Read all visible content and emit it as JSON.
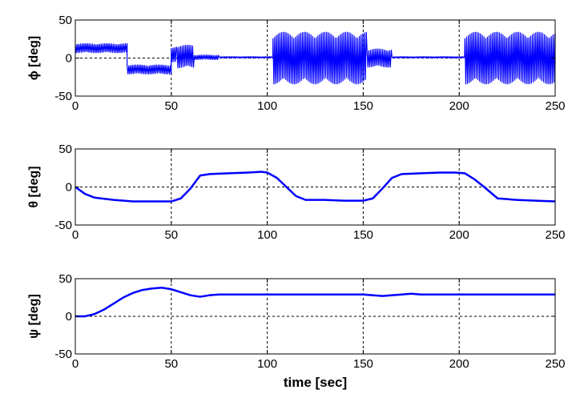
{
  "chart_data": [
    {
      "type": "line",
      "ylabel": "ϕ [deg]",
      "xlabel": "",
      "xlim": [
        0,
        250
      ],
      "ylim": [
        -50,
        50
      ],
      "xticks": [
        0,
        50,
        100,
        150,
        200,
        250
      ],
      "yticks": [
        -50,
        0,
        50
      ],
      "grid": true,
      "color": "#0000ff",
      "series": [
        {
          "segments": [
            {
              "x": [
                0,
                27
              ],
              "center": 13,
              "amp": 6
            },
            {
              "x": [
                27,
                50
              ],
              "center": -15,
              "amp": 6
            },
            {
              "x": [
                50,
                53
              ],
              "center": 5,
              "amp": 10
            },
            {
              "x": [
                53,
                62
              ],
              "center": 2,
              "amp": 15
            },
            {
              "x": [
                62,
                75
              ],
              "center": 1,
              "amp": 3
            },
            {
              "x": [
                75,
                103
              ],
              "center": 1,
              "amp": 1
            },
            {
              "x": [
                103,
                152
              ],
              "center": 0,
              "amp": 34
            },
            {
              "x": [
                152,
                165
              ],
              "center": 0,
              "amp": 12
            },
            {
              "x": [
                165,
                203
              ],
              "center": 1,
              "amp": 1
            },
            {
              "x": [
                203,
                250
              ],
              "center": 0,
              "amp": 34
            }
          ]
        }
      ]
    },
    {
      "type": "line",
      "ylabel": "θ [deg]",
      "xlabel": "",
      "xlim": [
        0,
        250
      ],
      "ylim": [
        -50,
        50
      ],
      "xticks": [
        0,
        50,
        100,
        150,
        200,
        250
      ],
      "yticks": [
        -50,
        0,
        50
      ],
      "grid": true,
      "color": "#0000ff",
      "series": [
        {
          "x": [
            0,
            5,
            10,
            20,
            30,
            40,
            50,
            55,
            60,
            65,
            70,
            80,
            90,
            97,
            100,
            105,
            110,
            115,
            120,
            130,
            140,
            150,
            155,
            160,
            165,
            170,
            180,
            190,
            198,
            203,
            208,
            213,
            220,
            230,
            240,
            250
          ],
          "y": [
            0,
            -9,
            -14,
            -17,
            -19,
            -19,
            -19,
            -15,
            -2,
            15,
            17,
            18,
            19,
            20,
            19,
            12,
            0,
            -12,
            -17,
            -17,
            -18,
            -18,
            -15,
            -2,
            12,
            17,
            18,
            19,
            19,
            18,
            10,
            0,
            -15,
            -17,
            -18,
            -19
          ]
        }
      ]
    },
    {
      "type": "line",
      "ylabel": "ψ [deg]",
      "xlabel": "time [sec]",
      "xlim": [
        0,
        250
      ],
      "ylim": [
        -50,
        50
      ],
      "xticks": [
        0,
        50,
        100,
        150,
        200,
        250
      ],
      "yticks": [
        -50,
        0,
        50
      ],
      "grid": true,
      "color": "#0000ff",
      "series": [
        {
          "x": [
            0,
            5,
            10,
            15,
            20,
            25,
            30,
            35,
            40,
            45,
            50,
            55,
            60,
            65,
            70,
            75,
            80,
            100,
            120,
            150,
            160,
            170,
            175,
            180,
            200,
            220,
            250
          ],
          "y": [
            0,
            0,
            3,
            9,
            17,
            25,
            31,
            35,
            37,
            38,
            36,
            32,
            28,
            26,
            28,
            29,
            29,
            29,
            29,
            29,
            27,
            29,
            30,
            29,
            29,
            29,
            29
          ]
        }
      ]
    }
  ]
}
